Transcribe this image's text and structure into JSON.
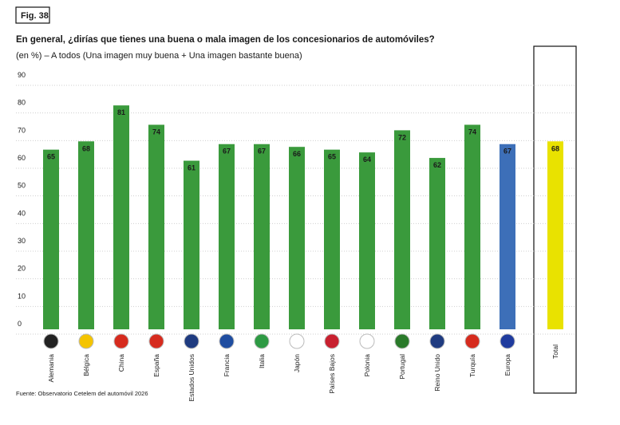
{
  "fig_label": "Fig. 38",
  "source": "Fuente: Observatorio Cetelem del automóvil 2026",
  "chart_data": {
    "type": "bar",
    "title": "En general, ¿dirías que tienes una buena o mala imagen de los concesionarios de automóviles?",
    "subtitle": "(en %) – A todos (Una imagen muy buena + Una imagen bastante buena)",
    "categories": [
      "Alemania",
      "Bélgica",
      "China",
      "España",
      "Estados Unidos",
      "Francia",
      "Italia",
      "Japón",
      "Países Bajos",
      "Polonia",
      "Portugal",
      "Reino Unido",
      "Turquía",
      "Europa",
      "Total"
    ],
    "values": [
      65,
      68,
      81,
      74,
      61,
      67,
      67,
      66,
      65,
      64,
      72,
      62,
      74,
      67,
      68
    ],
    "colors": [
      "#3a9a3c",
      "#3a9a3c",
      "#3a9a3c",
      "#3a9a3c",
      "#3a9a3c",
      "#3a9a3c",
      "#3a9a3c",
      "#3a9a3c",
      "#3a9a3c",
      "#3a9a3c",
      "#3a9a3c",
      "#3a9a3c",
      "#3a9a3c",
      "#3d6fb8",
      "#e9e200"
    ],
    "ylim": [
      0,
      90
    ],
    "yticks": [
      0,
      10,
      20,
      30,
      40,
      50,
      60,
      70,
      80,
      90
    ],
    "grid": true
  }
}
